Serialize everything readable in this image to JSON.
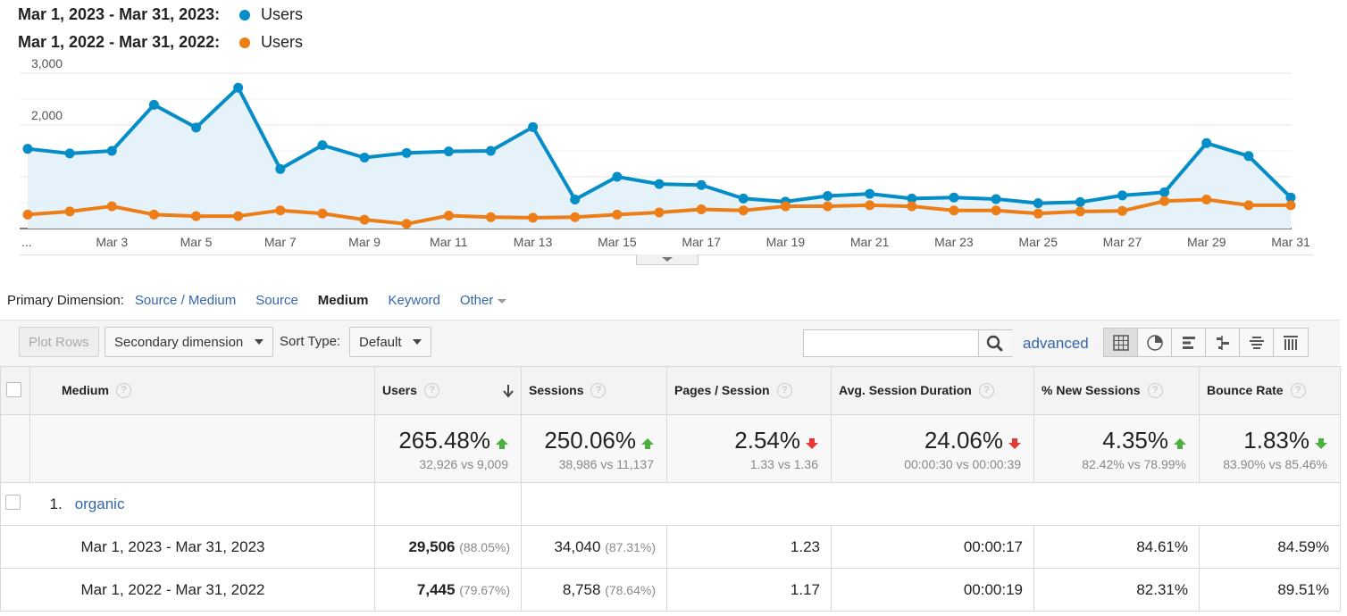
{
  "legend": [
    {
      "range": "Mar 1, 2023 - Mar 31, 2023:",
      "series": "Users",
      "color": "#058dc7"
    },
    {
      "range": "Mar 1, 2022 - Mar 31, 2022:",
      "series": "Users",
      "color": "#ed7e17"
    }
  ],
  "chart_data": {
    "type": "line",
    "x": [
      "Mar 1",
      "Mar 2",
      "Mar 3",
      "Mar 4",
      "Mar 5",
      "Mar 6",
      "Mar 7",
      "Mar 8",
      "Mar 9",
      "Mar 10",
      "Mar 11",
      "Mar 12",
      "Mar 13",
      "Mar 14",
      "Mar 15",
      "Mar 16",
      "Mar 17",
      "Mar 18",
      "Mar 19",
      "Mar 20",
      "Mar 21",
      "Mar 22",
      "Mar 23",
      "Mar 24",
      "Mar 25",
      "Mar 26",
      "Mar 27",
      "Mar 28",
      "Mar 29",
      "Mar 30",
      "Mar 31"
    ],
    "x_tick_labels": [
      "...",
      "Mar 3",
      "Mar 5",
      "Mar 7",
      "Mar 9",
      "Mar 11",
      "Mar 13",
      "Mar 15",
      "Mar 17",
      "Mar 19",
      "Mar 21",
      "Mar 23",
      "Mar 25",
      "Mar 27",
      "Mar 29",
      "Mar 31"
    ],
    "y_tick_labels": [
      "3,000",
      "2,000",
      "1,000"
    ],
    "ylim": [
      0,
      3000
    ],
    "grid": true,
    "series": [
      {
        "name": "Users",
        "color": "#058dc7",
        "area": true,
        "values": [
          1540,
          1450,
          1500,
          2390,
          1950,
          2720,
          1150,
          1610,
          1370,
          1460,
          1490,
          1500,
          1960,
          560,
          1000,
          860,
          840,
          580,
          520,
          630,
          670,
          580,
          600,
          570,
          490,
          510,
          640,
          700,
          1650,
          1400,
          600
        ]
      },
      {
        "name": "Users",
        "color": "#ed7e17",
        "area": false,
        "values": [
          270,
          330,
          430,
          270,
          240,
          240,
          350,
          290,
          170,
          90,
          250,
          220,
          210,
          220,
          270,
          310,
          370,
          350,
          430,
          430,
          450,
          430,
          350,
          350,
          290,
          330,
          340,
          530,
          560,
          450,
          450
        ]
      }
    ]
  },
  "primary_dimension": {
    "label": "Primary Dimension:",
    "options": [
      "Source / Medium",
      "Source",
      "Medium",
      "Keyword",
      "Other"
    ],
    "active": "Medium"
  },
  "toolbar": {
    "plot_rows": "Plot Rows",
    "secondary_dimension": "Secondary dimension",
    "sort_type_label": "Sort Type:",
    "sort_type_value": "Default",
    "search_value": "",
    "advanced": "advanced"
  },
  "table": {
    "headers": [
      "Medium",
      "Users",
      "Sessions",
      "Pages / Session",
      "Avg. Session Duration",
      "% New Sessions",
      "Bounce Rate"
    ],
    "totals": [
      {
        "value": "265.48%",
        "trend": "up",
        "compare": "32,926 vs 9,009"
      },
      {
        "value": "250.06%",
        "trend": "up",
        "compare": "38,986 vs 11,137"
      },
      {
        "value": "2.54%",
        "trend": "down",
        "compare": "1.33 vs 1.36"
      },
      {
        "value": "24.06%",
        "trend": "down",
        "compare": "00:00:30 vs 00:00:39"
      },
      {
        "value": "4.35%",
        "trend": "up",
        "compare": "82.42% vs 78.99%"
      },
      {
        "value": "1.83%",
        "trend": "down-good",
        "compare": "83.90% vs 85.46%"
      }
    ],
    "group": {
      "index": "1.",
      "name": "organic"
    },
    "rows": [
      {
        "label": "Mar 1, 2023 - Mar 31, 2023",
        "users": "29,506",
        "users_pct": "(88.05%)",
        "sessions": "34,040",
        "sessions_pct": "(87.31%)",
        "pages": "1.23",
        "duration": "00:00:17",
        "new_sessions": "84.61%",
        "bounce": "84.59%"
      },
      {
        "label": "Mar 1, 2022 - Mar 31, 2022",
        "users": "7,445",
        "users_pct": "(79.67%)",
        "sessions": "8,758",
        "sessions_pct": "(78.64%)",
        "pages": "1.17",
        "duration": "00:00:19",
        "new_sessions": "82.31%",
        "bounce": "89.51%"
      }
    ]
  }
}
